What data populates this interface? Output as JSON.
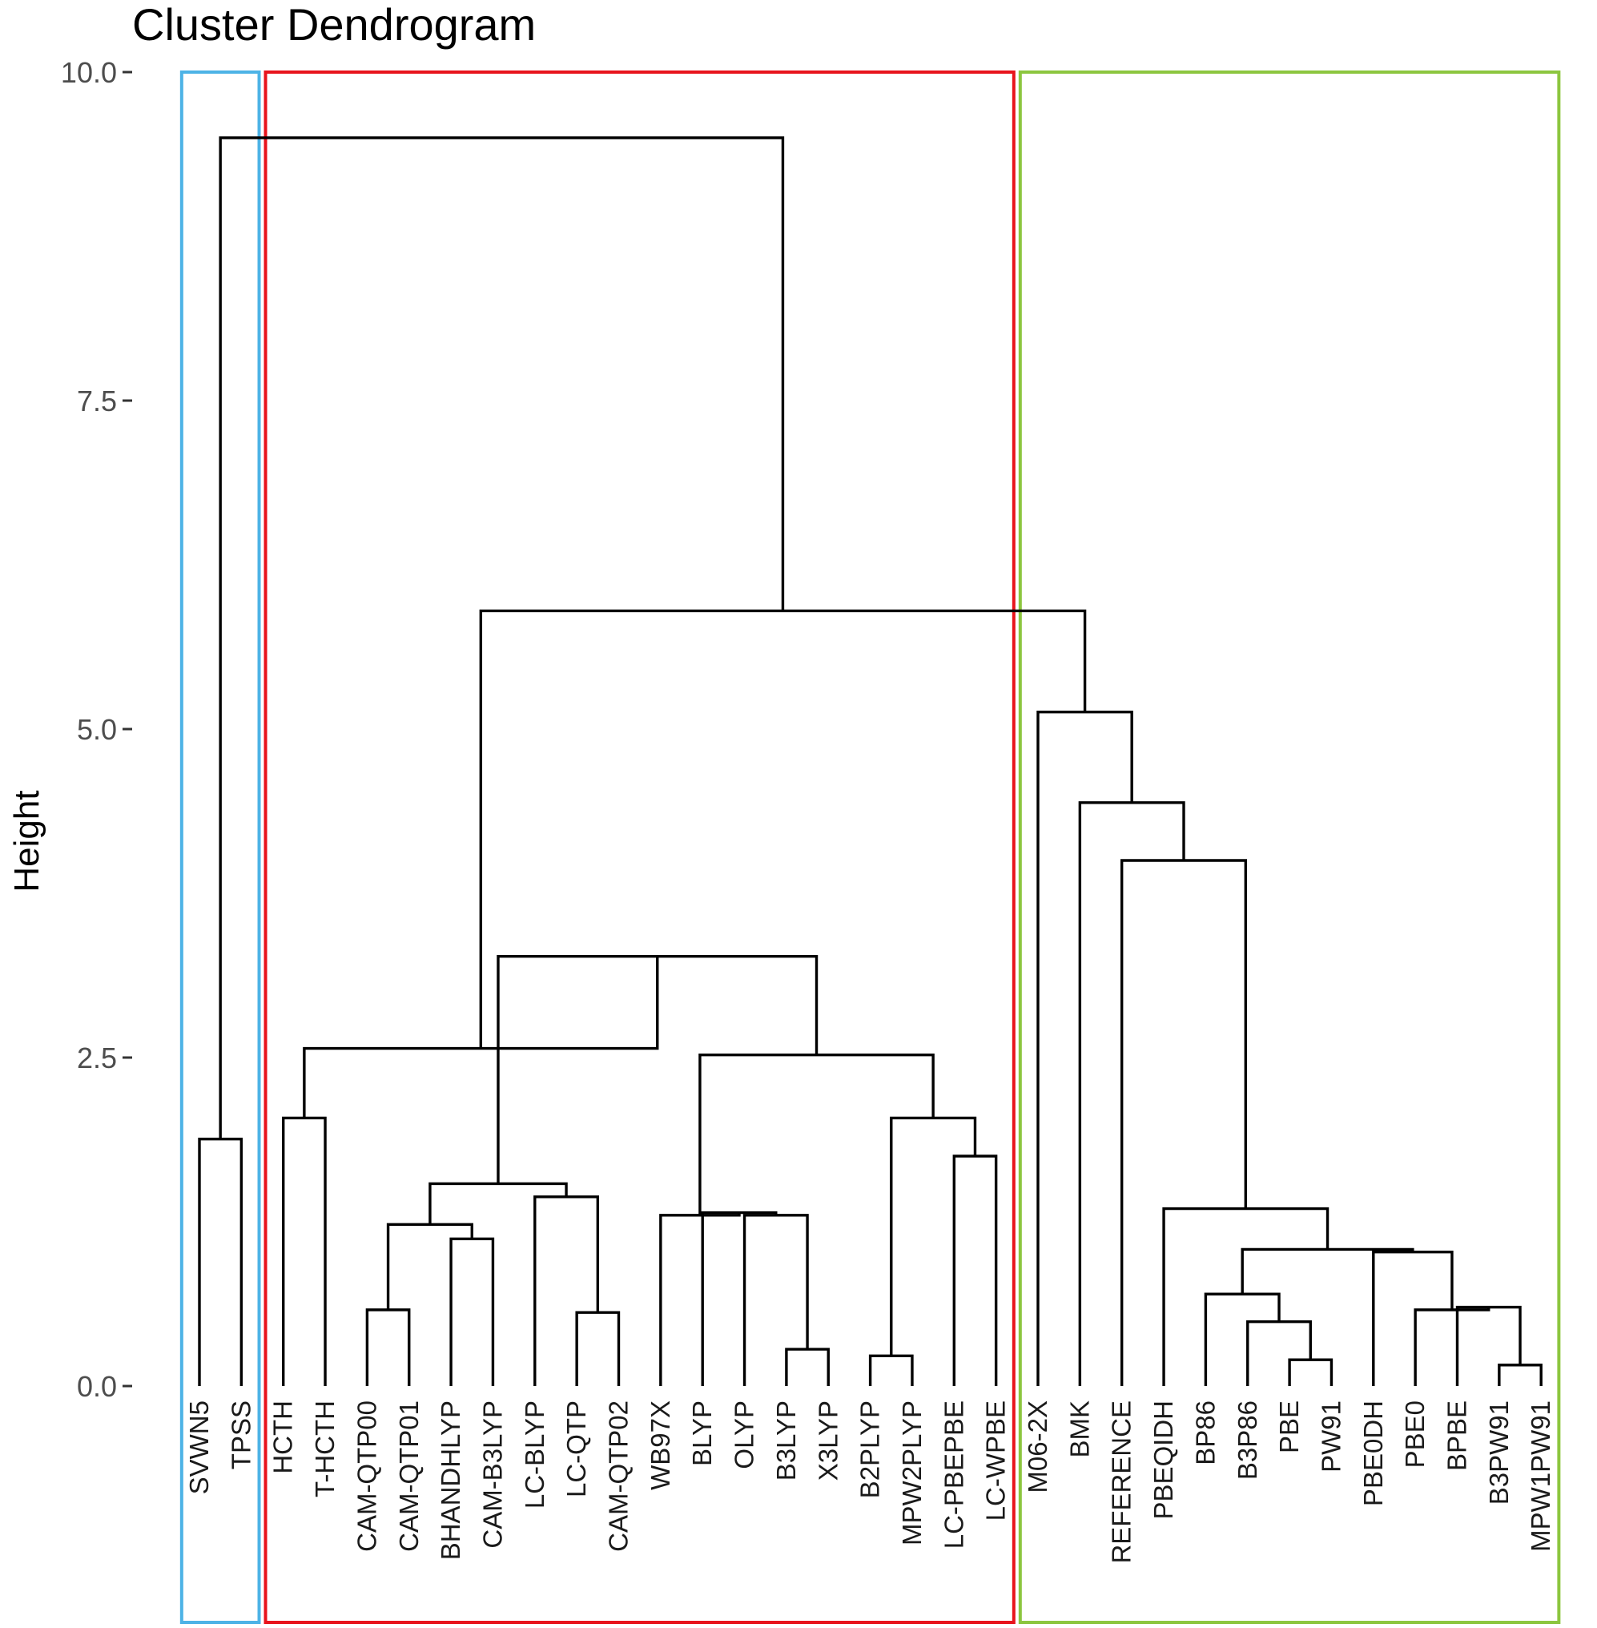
{
  "chart_data": {
    "type": "dendrogram",
    "title": "Cluster Dendrogram",
    "ylabel": "Height",
    "ylim": [
      0,
      10
    ],
    "yticks": [
      {
        "value": 0,
        "label": "0.0"
      },
      {
        "value": 2.5,
        "label": "2.5"
      },
      {
        "value": 5,
        "label": "5.0"
      },
      {
        "value": 7.5,
        "label": "7.5"
      },
      {
        "value": 10,
        "label": "10.0"
      }
    ],
    "grid": false,
    "leaves": [
      "SVWN5",
      "TPSS",
      "HCTH",
      "T-HCTH",
      "CAM-QTP00",
      "CAM-QTP01",
      "BHANDHLYP",
      "CAM-B3LYP",
      "LC-BLYP",
      "LC-QTP",
      "CAM-QTP02",
      "WB97X",
      "BLYP",
      "OLYP",
      "B3LYP",
      "X3LYP",
      "B2PLYP",
      "MPW2PLYP",
      "LC-PBEPBE",
      "LC-WPBE",
      "M06-2X",
      "BMK",
      "REFERENCE",
      "PBEQIDH",
      "BP86",
      "B3P86",
      "PBE",
      "PW91",
      "PBE0DH",
      "PBE0",
      "BPBE",
      "B3PW91",
      "MPW1PW91"
    ],
    "merges": [
      {
        "id": "n1",
        "children": [
          "SVWN5",
          "TPSS"
        ],
        "height": 1.88
      },
      {
        "id": "n2",
        "children": [
          "HCTH",
          "T-HCTH"
        ],
        "height": 2.04
      },
      {
        "id": "n3",
        "children": [
          "CAM-QTP00",
          "CAM-QTP01"
        ],
        "height": 0.58
      },
      {
        "id": "n4",
        "children": [
          "BHANDHLYP",
          "CAM-B3LYP"
        ],
        "height": 1.12
      },
      {
        "id": "n5",
        "children": [
          "n3",
          "n4"
        ],
        "height": 1.23
      },
      {
        "id": "n6",
        "children": [
          "LC-QTP",
          "CAM-QTP02"
        ],
        "height": 0.56
      },
      {
        "id": "n7",
        "children": [
          "LC-BLYP",
          "n6"
        ],
        "height": 1.44
      },
      {
        "id": "n8",
        "children": [
          "n5",
          "n7"
        ],
        "height": 1.54
      },
      {
        "id": "n9",
        "children": [
          "B3LYP",
          "X3LYP"
        ],
        "height": 0.28
      },
      {
        "id": "n10",
        "children": [
          "OLYP",
          "n9"
        ],
        "height": 1.3
      },
      {
        "id": "n11",
        "children": [
          "BLYP",
          "n10"
        ],
        "height": 1.32
      },
      {
        "id": "n12",
        "children": [
          "WB97X",
          "n11"
        ],
        "height": 1.3
      },
      {
        "id": "n13",
        "children": [
          "B2PLYP",
          "MPW2PLYP"
        ],
        "height": 0.23
      },
      {
        "id": "n14",
        "children": [
          "LC-PBEPBE",
          "LC-WPBE"
        ],
        "height": 1.75
      },
      {
        "id": "n15",
        "children": [
          "n13",
          "n14"
        ],
        "height": 2.04
      },
      {
        "id": "n16",
        "children": [
          "n12",
          "n15"
        ],
        "height": 2.52
      },
      {
        "id": "n17",
        "children": [
          "n8",
          "n16"
        ],
        "height": 3.27
      },
      {
        "id": "n18",
        "children": [
          "n2",
          "n17"
        ],
        "height": 2.57
      },
      {
        "id": "n19",
        "children": [
          "PBE",
          "PW91"
        ],
        "height": 0.2
      },
      {
        "id": "n20",
        "children": [
          "B3P86",
          "n19"
        ],
        "height": 0.49
      },
      {
        "id": "n21",
        "children": [
          "BP86",
          "n20"
        ],
        "height": 0.7
      },
      {
        "id": "n22",
        "children": [
          "B3PW91",
          "MPW1PW91"
        ],
        "height": 0.16
      },
      {
        "id": "n23",
        "children": [
          "BPBE",
          "n22"
        ],
        "height": 0.6
      },
      {
        "id": "n24",
        "children": [
          "PBE0",
          "n23"
        ],
        "height": 0.58
      },
      {
        "id": "n25",
        "children": [
          "PBE0DH",
          "n24"
        ],
        "height": 1.02
      },
      {
        "id": "n26",
        "children": [
          "n21",
          "n25"
        ],
        "height": 1.04
      },
      {
        "id": "n27",
        "children": [
          "PBEQIDH",
          "n26"
        ],
        "height": 1.35
      },
      {
        "id": "n28",
        "children": [
          "REFERENCE",
          "n27"
        ],
        "height": 4.0
      },
      {
        "id": "n29",
        "children": [
          "BMK",
          "n28"
        ],
        "height": 4.44
      },
      {
        "id": "n30",
        "children": [
          "M06-2X",
          "n29"
        ],
        "height": 5.13
      },
      {
        "id": "n31",
        "children": [
          "n18",
          "n30"
        ],
        "height": 5.9
      },
      {
        "id": "n32",
        "children": [
          "n1",
          "n31"
        ],
        "height": 9.5
      }
    ],
    "clusters": [
      {
        "first_leaf": "SVWN5",
        "last_leaf": "TPSS",
        "color": "#4db3e6"
      },
      {
        "first_leaf": "HCTH",
        "last_leaf": "LC-WPBE",
        "color": "#e8141c"
      },
      {
        "first_leaf": "M06-2X",
        "last_leaf": "MPW1PW91",
        "color": "#8cc63f"
      }
    ],
    "link_color": "#000000"
  }
}
